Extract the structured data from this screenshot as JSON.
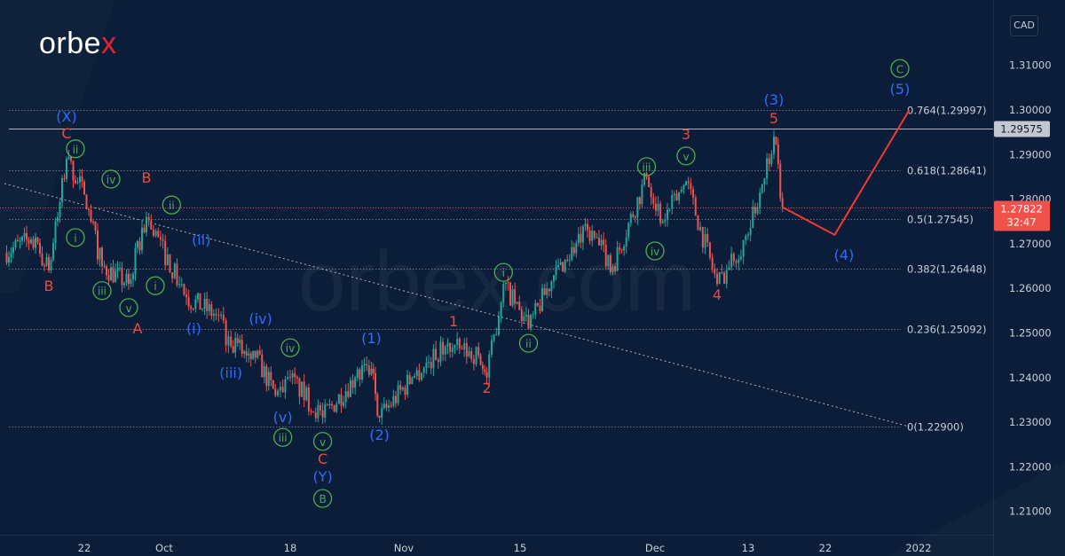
{
  "brand": {
    "logo_text_main": "orbe",
    "logo_text_accent": "x",
    "watermark": "orbex.com"
  },
  "currency_button": "CAD",
  "colors": {
    "background": "#0b1d38",
    "up_candle": "#26a69a",
    "down_candle": "#ef5350",
    "wave_blue": "#2f6bff",
    "wave_green": "#4caf50",
    "wave_red": "#f04a3e",
    "projection": "#f23b30",
    "fib_line": "#8a94a6",
    "level_line": "#b2b5be"
  },
  "chart_data": {
    "type": "candlestick",
    "symbol_quote": "CAD",
    "ylim": [
      1.205,
      1.322
    ],
    "y_ticks": [
      "1.31000",
      "1.30000",
      "1.29000",
      "1.28000",
      "1.27000",
      "1.26000",
      "1.25000",
      "1.24000",
      "1.23000",
      "1.22000",
      "1.21000"
    ],
    "y_tick_values": [
      1.31,
      1.3,
      1.29,
      1.28,
      1.27,
      1.26,
      1.25,
      1.24,
      1.23,
      1.22,
      1.21
    ],
    "x_ticks": [
      {
        "label": "22",
        "date": "2021-09-22"
      },
      {
        "label": "Oct",
        "date": "2021-10-01"
      },
      {
        "label": "18",
        "date": "2021-10-18"
      },
      {
        "label": "Nov",
        "date": "2021-11-01"
      },
      {
        "label": "15",
        "date": "2021-11-15"
      },
      {
        "label": "Dec",
        "date": "2021-12-01"
      },
      {
        "label": "13",
        "date": "2021-12-13"
      },
      {
        "label": "22",
        "date": "2021-12-22"
      },
      {
        "label": "2022",
        "date": "2022-01-01"
      }
    ],
    "price_path": [
      [
        "2021-09-13",
        1.268
      ],
      [
        "2021-09-16",
        1.271
      ],
      [
        "2021-09-18",
        1.264
      ],
      [
        "2021-09-19",
        1.276
      ],
      [
        "2021-09-20",
        1.289
      ],
      [
        "2021-09-22",
        1.281
      ],
      [
        "2021-09-24",
        1.265
      ],
      [
        "2021-09-27",
        1.261
      ],
      [
        "2021-09-29",
        1.276
      ],
      [
        "2021-10-04",
        1.258
      ],
      [
        "2021-10-08",
        1.254
      ],
      [
        "2021-10-10",
        1.247
      ],
      [
        "2021-10-13",
        1.246
      ],
      [
        "2021-10-16",
        1.236
      ],
      [
        "2021-10-18",
        1.24
      ],
      [
        "2021-10-22",
        1.231
      ],
      [
        "2021-10-26",
        1.24
      ],
      [
        "2021-10-28",
        1.242
      ],
      [
        "2021-10-29",
        1.231
      ],
      [
        "2021-11-02",
        1.24
      ],
      [
        "2021-11-06",
        1.247
      ],
      [
        "2021-11-10",
        1.245
      ],
      [
        "2021-11-11",
        1.24
      ],
      [
        "2021-11-13",
        1.261
      ],
      [
        "2021-11-16",
        1.251
      ],
      [
        "2021-11-19",
        1.263
      ],
      [
        "2021-11-23",
        1.273
      ],
      [
        "2021-11-26",
        1.265
      ],
      [
        "2021-11-30",
        1.285
      ],
      [
        "2021-12-02",
        1.275
      ],
      [
        "2021-12-05",
        1.284
      ],
      [
        "2021-12-09",
        1.261
      ],
      [
        "2021-12-13",
        1.272
      ],
      [
        "2021-12-16",
        1.294
      ],
      [
        "2021-12-17",
        1.27822
      ]
    ],
    "projection": [
      [
        "2021-12-17",
        1.2782
      ],
      [
        "2021-12-23",
        1.272
      ],
      [
        "2021-12-31",
        1.29997
      ]
    ],
    "trendline": [
      [
        "2021-09-13",
        1.2835
      ],
      [
        "2021-12-31",
        1.229
      ]
    ],
    "fib_levels": [
      {
        "label": "0.764(1.29997)",
        "price": 1.29997
      },
      {
        "label": "0.618(1.28641)",
        "price": 1.28641
      },
      {
        "label": "0.5(1.27545)",
        "price": 1.27545
      },
      {
        "label": "0.382(1.26448)",
        "price": 1.26448
      },
      {
        "label": "0.236(1.25092)",
        "price": 1.25092
      },
      {
        "label": "0(1.22900)",
        "price": 1.229
      }
    ],
    "horizontal_level": {
      "label": "1.29575",
      "price": 1.29575
    },
    "last_price": {
      "label": "1.27822",
      "countdown": "32:47",
      "price": 1.27822
    },
    "annotations": [
      {
        "text": "(X)",
        "color": "blue",
        "date": "2021-09-20",
        "price": 1.2974
      },
      {
        "text": "C",
        "color": "red",
        "date": "2021-09-20",
        "price": 1.2936
      },
      {
        "text": "ii",
        "color": "green",
        "circled": true,
        "date": "2021-09-21",
        "price": 1.2903
      },
      {
        "text": "i",
        "color": "green",
        "circled": true,
        "date": "2021-09-21",
        "price": 1.2704
      },
      {
        "text": "B",
        "color": "red",
        "date": "2021-09-18",
        "price": 1.2594
      },
      {
        "text": "iii",
        "color": "green",
        "circled": true,
        "date": "2021-09-24",
        "price": 1.2585
      },
      {
        "text": "iv",
        "color": "green",
        "circled": true,
        "date": "2021-09-25",
        "price": 1.2835
      },
      {
        "text": "v",
        "color": "green",
        "circled": true,
        "date": "2021-09-27",
        "price": 1.2547
      },
      {
        "text": "A",
        "color": "red",
        "date": "2021-09-28",
        "price": 1.2499
      },
      {
        "text": "B",
        "color": "red",
        "date": "2021-09-29",
        "price": 1.2837
      },
      {
        "text": "ii",
        "color": "green",
        "circled": true,
        "date": "2021-10-02",
        "price": 1.2777
      },
      {
        "text": "i",
        "color": "green",
        "circled": true,
        "date": "2021-09-30",
        "price": 1.2596
      },
      {
        "text": "(ii)",
        "color": "blue",
        "date": "2021-10-06",
        "price": 1.2698
      },
      {
        "text": "(i)",
        "color": "blue",
        "date": "2021-10-05",
        "price": 1.2499
      },
      {
        "text": "(iii)",
        "color": "blue",
        "date": "2021-10-10",
        "price": 1.24
      },
      {
        "text": "(iv)",
        "color": "blue",
        "date": "2021-10-14",
        "price": 1.2521
      },
      {
        "text": "iv",
        "color": "green",
        "circled": true,
        "date": "2021-10-18",
        "price": 1.2457
      },
      {
        "text": "(v)",
        "color": "blue",
        "date": "2021-10-17",
        "price": 1.23
      },
      {
        "text": "iii",
        "color": "green",
        "circled": true,
        "date": "2021-10-17",
        "price": 1.2256
      },
      {
        "text": "v",
        "color": "green",
        "circled": true,
        "date": "2021-10-22",
        "price": 1.2247
      },
      {
        "text": "C",
        "color": "red",
        "date": "2021-10-22",
        "price": 1.2207
      },
      {
        "text": "(Y)",
        "color": "blue",
        "date": "2021-10-22",
        "price": 1.2167
      },
      {
        "text": "B",
        "color": "green",
        "circled": true,
        "date": "2021-10-22",
        "price": 1.2119
      },
      {
        "text": "(1)",
        "color": "blue",
        "date": "2021-10-28",
        "price": 1.2477
      },
      {
        "text": "(2)",
        "color": "blue",
        "date": "2021-10-29",
        "price": 1.226
      },
      {
        "text": "1",
        "color": "red",
        "date": "2021-11-07",
        "price": 1.2515
      },
      {
        "text": "2",
        "color": "red",
        "date": "2021-11-11",
        "price": 1.2366
      },
      {
        "text": "i",
        "color": "green",
        "circled": true,
        "date": "2021-11-13",
        "price": 1.2626
      },
      {
        "text": "ii",
        "color": "green",
        "circled": true,
        "date": "2021-11-16",
        "price": 1.2467
      },
      {
        "text": "iii",
        "color": "green",
        "circled": true,
        "date": "2021-11-30",
        "price": 1.2863
      },
      {
        "text": "iv",
        "color": "green",
        "circled": true,
        "date": "2021-12-01",
        "price": 1.2674
      },
      {
        "text": "v",
        "color": "green",
        "circled": true,
        "date": "2021-12-05",
        "price": 1.2887
      },
      {
        "text": "3",
        "color": "red",
        "date": "2021-12-05",
        "price": 1.2934
      },
      {
        "text": "4",
        "color": "red",
        "date": "2021-12-09",
        "price": 1.2575
      },
      {
        "text": "5",
        "color": "red",
        "date": "2021-12-16",
        "price": 1.297
      },
      {
        "text": "(3)",
        "color": "blue",
        "date": "2021-12-16",
        "price": 1.3012
      },
      {
        "text": "(4)",
        "color": "blue",
        "date": "2021-12-24",
        "price": 1.2664
      },
      {
        "text": "(5)",
        "color": "blue",
        "date": "2021-12-30",
        "price": 1.3036
      },
      {
        "text": "C",
        "color": "green",
        "circled": true,
        "date": "2021-12-30",
        "price": 1.3083
      }
    ]
  }
}
